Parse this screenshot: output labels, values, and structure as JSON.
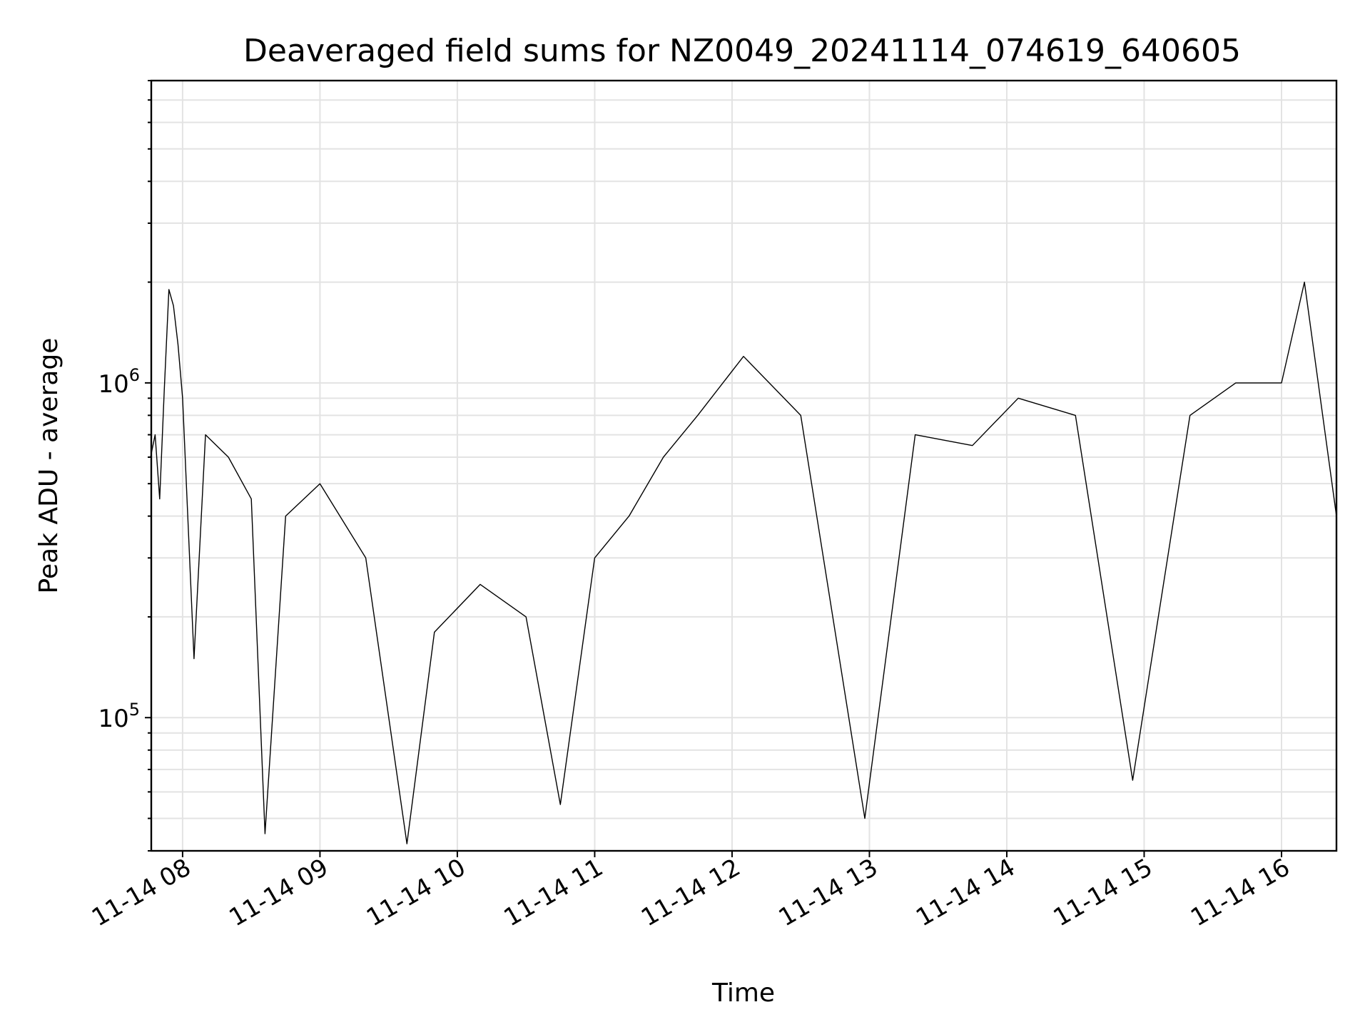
{
  "chart_data": {
    "type": "line",
    "title": "Deaveraged field sums for NZ0049_20241114_074619_640605",
    "xlabel": "Time",
    "ylabel": "Peak ADU - average",
    "yscale": "log",
    "ylim": [
      40000,
      8000000
    ],
    "xlim": [
      "2024-11-14 07:46:19",
      "2024-11-14 16:24:00"
    ],
    "grid": true,
    "line_color": "#000000",
    "x_ticks": [
      {
        "time": "2024-11-14 08:00",
        "label": "11-14 08"
      },
      {
        "time": "2024-11-14 09:00",
        "label": "11-14 09"
      },
      {
        "time": "2024-11-14 10:00",
        "label": "11-14 10"
      },
      {
        "time": "2024-11-14 11:00",
        "label": "11-14 11"
      },
      {
        "time": "2024-11-14 12:00",
        "label": "11-14 12"
      },
      {
        "time": "2024-11-14 13:00",
        "label": "11-14 13"
      },
      {
        "time": "2024-11-14 14:00",
        "label": "11-14 14"
      },
      {
        "time": "2024-11-14 15:00",
        "label": "11-14 15"
      },
      {
        "time": "2024-11-14 16:00",
        "label": "11-14 16"
      }
    ],
    "y_ticks": [
      {
        "value": 100000,
        "base": "10",
        "exp": "5"
      },
      {
        "value": 1000000,
        "base": "10",
        "exp": "6"
      }
    ],
    "series": [
      {
        "x": [
          "2024-11-14 07:46",
          "2024-11-14 07:48",
          "2024-11-14 07:50",
          "2024-11-14 07:52",
          "2024-11-14 07:54",
          "2024-11-14 07:56",
          "2024-11-14 07:58",
          "2024-11-14 08:00",
          "2024-11-14 08:05",
          "2024-11-14 08:10",
          "2024-11-14 08:20",
          "2024-11-14 08:30",
          "2024-11-14 08:36",
          "2024-11-14 08:45",
          "2024-11-14 09:00",
          "2024-11-14 09:20",
          "2024-11-14 09:38",
          "2024-11-14 09:50",
          "2024-11-14 10:10",
          "2024-11-14 10:30",
          "2024-11-14 10:45",
          "2024-11-14 11:00",
          "2024-11-14 11:15",
          "2024-11-14 11:30",
          "2024-11-14 11:45",
          "2024-11-14 12:05",
          "2024-11-14 12:30",
          "2024-11-14 12:58",
          "2024-11-14 13:20",
          "2024-11-14 13:45",
          "2024-11-14 14:05",
          "2024-11-14 14:30",
          "2024-11-14 14:55",
          "2024-11-14 15:20",
          "2024-11-14 15:40",
          "2024-11-14 16:00",
          "2024-11-14 16:10",
          "2024-11-14 16:24"
        ],
        "y": [
          600000,
          700000,
          450000,
          950000,
          1900000,
          1700000,
          1300000,
          900000,
          150000,
          700000,
          600000,
          450000,
          45000,
          400000,
          500000,
          300000,
          42000,
          180000,
          250000,
          200000,
          55000,
          300000,
          400000,
          600000,
          800000,
          1200000,
          800000,
          50000,
          700000,
          650000,
          900000,
          800000,
          65000,
          800000,
          1000000,
          1000000,
          2000000,
          400000
        ]
      }
    ]
  }
}
